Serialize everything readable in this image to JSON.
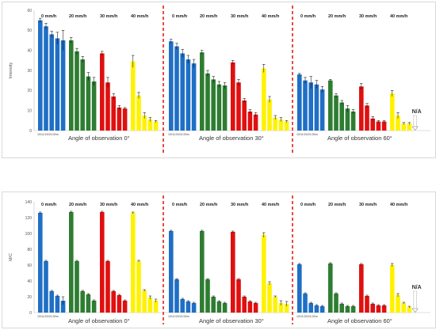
{
  "colors": {
    "0 mm/h": "#1F6FC5",
    "20 mm/h": "#2E7D32",
    "30 mm/h": "#E01010",
    "40 mm/h": "#FFF200",
    "divider": "#E0201A"
  },
  "chart_data": [
    {
      "type": "bar",
      "title": "",
      "xlabel": "",
      "ylabel": "Intensity",
      "ylim": [
        0,
        60
      ],
      "yticks": [
        0,
        10,
        20,
        30,
        40,
        50,
        60
      ],
      "grid": false,
      "groups": [
        "0 mm/h",
        "20 mm/h",
        "30 mm/h",
        "40 mm/h"
      ],
      "timestamp": "10/11/20/21/30m",
      "na_label": "N/A",
      "panels": [
        {
          "label": "Angle of observation 0°",
          "series": [
            {
              "group": "0 mm/h",
              "values": [
                55,
                52,
                48,
                46,
                45
              ],
              "errors": [
                1,
                1.5,
                1.5,
                3,
                5
              ]
            },
            {
              "group": "20 mm/h",
              "values": [
                45,
                39.5,
                35.5,
                27,
                24.5
              ],
              "errors": [
                1.5,
                1.5,
                1.5,
                2,
                2
              ]
            },
            {
              "group": "30 mm/h",
              "values": [
                38.5,
                24,
                17,
                11.5,
                11
              ],
              "errors": [
                1,
                2.5,
                1.5,
                1,
                0.5
              ]
            },
            {
              "group": "40 mm/h",
              "values": [
                34.5,
                17.5,
                7.5,
                5.5,
                4.5
              ],
              "errors": [
                3,
                1.5,
                1.5,
                1,
                0.5
              ]
            }
          ]
        },
        {
          "label": "Angle of observation 30°",
          "series": [
            {
              "group": "0 mm/h",
              "values": [
                44.5,
                42,
                38.5,
                35.5,
                33.5
              ],
              "errors": [
                1,
                1.5,
                2,
                2,
                2
              ]
            },
            {
              "group": "20 mm/h",
              "values": [
                39,
                28.5,
                25.5,
                23,
                22.5
              ],
              "errors": [
                1,
                1.5,
                1.5,
                1.5,
                1.5
              ]
            },
            {
              "group": "30 mm/h",
              "values": [
                34,
                24,
                15,
                9.5,
                8
              ],
              "errors": [
                1,
                1.5,
                1,
                1,
                1
              ]
            },
            {
              "group": "40 mm/h",
              "values": [
                31,
                15.5,
                6.5,
                5.5,
                4.5
              ],
              "errors": [
                2,
                1.5,
                1,
                1,
                0.5
              ]
            }
          ]
        },
        {
          "label": "Angle of observation 60°",
          "series": [
            {
              "group": "0 mm/h",
              "values": [
                28,
                25,
                24,
                23,
                20.5
              ],
              "errors": [
                0.5,
                1.5,
                3,
                2,
                1.5
              ]
            },
            {
              "group": "20 mm/h",
              "values": [
                25,
                17.5,
                14,
                11,
                9.5
              ],
              "errors": [
                0.5,
                1,
                1,
                1.5,
                1
              ]
            },
            {
              "group": "30 mm/h",
              "values": [
                22,
                12.5,
                6,
                4.5,
                4.5
              ],
              "errors": [
                1.5,
                1,
                1,
                0.5,
                0.5
              ]
            },
            {
              "group": "40 mm/h",
              "values": [
                18.5,
                7.5,
                3.5,
                3.5,
                null
              ],
              "errors": [
                1.5,
                1.5,
                0.5,
                0.5,
                null
              ]
            }
          ]
        }
      ]
    },
    {
      "type": "bar",
      "title": "",
      "xlabel": "",
      "ylabel": "M/C",
      "ylim": [
        0,
        140
      ],
      "yticks": [
        0,
        20,
        40,
        60,
        80,
        100,
        120,
        140
      ],
      "grid": false,
      "groups": [
        "0 mm/h",
        "20 mm/h",
        "30 mm/h",
        "40 mm/h"
      ],
      "timestamp": "10/11/20/21/30m",
      "na_label": "N/A",
      "panels": [
        {
          "label": "Angle of observation 0°",
          "series": [
            {
              "group": "0 mm/h",
              "values": [
                126,
                65,
                27,
                21,
                15
              ],
              "errors": [
                1,
                1,
                1,
                1,
                5
              ]
            },
            {
              "group": "20 mm/h",
              "values": [
                127,
                65,
                27,
                23,
                15
              ],
              "errors": [
                1,
                1,
                1,
                1,
                1
              ]
            },
            {
              "group": "30 mm/h",
              "values": [
                127,
                65,
                27,
                22,
                15
              ],
              "errors": [
                1,
                1,
                1,
                1,
                1
              ]
            },
            {
              "group": "40 mm/h",
              "values": [
                126,
                65,
                28,
                19,
                15
              ],
              "errors": [
                1,
                1,
                1,
                2,
                2
              ]
            }
          ]
        },
        {
          "label": "Angle of observation 30°",
          "series": [
            {
              "group": "0 mm/h",
              "values": [
                103,
                42,
                17,
                14,
                12
              ],
              "errors": [
                1,
                1,
                1,
                1,
                1
              ]
            },
            {
              "group": "20 mm/h",
              "values": [
                103,
                42,
                20,
                14,
                12
              ],
              "errors": [
                1,
                1,
                1,
                1,
                1
              ]
            },
            {
              "group": "30 mm/h",
              "values": [
                102,
                42,
                20,
                14,
                12
              ],
              "errors": [
                1,
                1,
                1,
                1,
                1
              ]
            },
            {
              "group": "40 mm/h",
              "values": [
                98,
                37,
                20,
                12,
                11
              ],
              "errors": [
                3,
                2,
                1,
                3,
                3
              ]
            }
          ]
        },
        {
          "label": "Angle of observation 60°",
          "series": [
            {
              "group": "0 mm/h",
              "values": [
                61,
                24,
                12,
                9,
                8
              ],
              "errors": [
                1,
                1,
                1,
                1,
                1
              ]
            },
            {
              "group": "20 mm/h",
              "values": [
                62,
                24,
                11,
                8,
                8
              ],
              "errors": [
                1,
                1,
                1,
                1,
                1
              ]
            },
            {
              "group": "30 mm/h",
              "values": [
                61,
                21,
                11,
                9,
                9
              ],
              "errors": [
                1,
                1,
                1,
                1,
                1
              ]
            },
            {
              "group": "40 mm/h",
              "values": [
                60,
                22,
                12,
                7,
                null
              ],
              "errors": [
                2,
                2,
                1,
                1,
                null
              ]
            }
          ]
        }
      ]
    }
  ]
}
